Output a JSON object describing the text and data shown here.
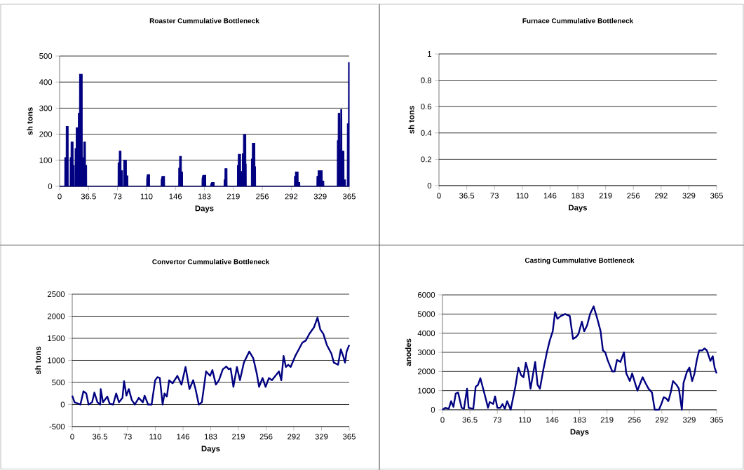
{
  "chart_data": [
    {
      "type": "area",
      "title": "Roaster Cummulative Bottleneck",
      "xlabel": "Days",
      "ylabel": "sh tons",
      "color": "#000080",
      "grid": "y",
      "xlim": [
        0,
        365
      ],
      "xticks": [
        0,
        36.5,
        73,
        {
          "value": 109.5,
          "label": "110"
        },
        146,
        {
          "value": 182.5,
          "label": "183"
        },
        219,
        {
          "value": 255.5,
          "label": "256"
        },
        292,
        {
          "value": 328.5,
          "label": "329"
        },
        365
      ],
      "ylim": [
        0,
        500
      ],
      "yticks": [
        0,
        100,
        200,
        300,
        400,
        500
      ],
      "x": [
        0,
        6.4,
        6.5,
        8.2,
        8.3,
        10.8,
        10.9,
        13.2,
        13.3,
        14.3,
        14.4,
        17,
        17.1,
        18.2,
        18.3,
        19.4,
        19.5,
        20.8,
        20.9,
        23.5,
        23.6,
        25,
        25.1,
        28.5,
        28.6,
        30.3,
        30.4,
        32.6,
        32.7,
        34.1,
        34.2,
        73.6,
        73.7,
        75.1,
        75.2,
        77.4,
        77.5,
        79.3,
        79.4,
        80.7,
        80.8,
        84.2,
        84.3,
        86,
        86.1,
        109.6,
        109.7,
        110.5,
        113.4,
        113.5,
        127.9,
        128,
        129,
        132.3,
        132.4,
        150,
        150.1,
        151.1,
        151.2,
        153.5,
        153.6,
        155,
        155.1,
        179.4,
        179.5,
        180.5,
        184.2,
        184.3,
        190.3,
        190.4,
        191.5,
        194.8,
        194.9,
        207.2,
        207.3,
        208.3,
        208.4,
        211,
        211.1,
        224,
        224.1,
        225.1,
        225.2,
        228.1,
        228.2,
        229.3,
        229.4,
        230.2,
        230.3,
        231.6,
        231.7,
        234.7,
        234.8,
        235.2,
        235.3,
        241.6,
        241.7,
        242.8,
        242.9,
        246.1,
        246.2,
        247,
        247.1,
        295.9,
        296,
        297.1,
        297.2,
        300.6,
        300.7,
        302.7,
        302.8,
        324.2,
        324.3,
        325.7,
        325.8,
        331,
        331.1,
        333,
        333.1,
        349.9,
        350,
        351,
        351.1,
        353.1,
        353.2,
        354.2,
        354.3,
        355.7,
        355.8,
        358.4,
        358.5,
        360.3,
        360.4,
        362.5,
        362.6,
        364,
        364.1,
        365
      ],
      "values": [
        0,
        0,
        110,
        110,
        230,
        230,
        0,
        0,
        110,
        110,
        170,
        170,
        80,
        80,
        0,
        0,
        145,
        145,
        225,
        225,
        280,
        280,
        430,
        430,
        110,
        110,
        170,
        170,
        80,
        80,
        0,
        0,
        90,
        90,
        135,
        135,
        60,
        60,
        0,
        0,
        100,
        100,
        40,
        40,
        0,
        0,
        30,
        45,
        45,
        0,
        0,
        25,
        38,
        38,
        0,
        0,
        70,
        70,
        115,
        115,
        55,
        55,
        0,
        0,
        30,
        42,
        42,
        0,
        0,
        8,
        15,
        15,
        0,
        0,
        25,
        25,
        68,
        68,
        0,
        0,
        80,
        80,
        123,
        123,
        57,
        57,
        0,
        0,
        125,
        125,
        198,
        198,
        85,
        85,
        0,
        0,
        105,
        105,
        165,
        165,
        75,
        75,
        0,
        0,
        38,
        38,
        55,
        55,
        15,
        15,
        0,
        0,
        38,
        38,
        60,
        60,
        20,
        20,
        0,
        0,
        175,
        175,
        280,
        280,
        140,
        140,
        295,
        295,
        135,
        135,
        25,
        25,
        0,
        0,
        240,
        240,
        475,
        475
      ]
    },
    {
      "type": "line",
      "title": "Furnace Cummulative Bottleneck",
      "xlabel": "Days",
      "ylabel": "sh tons",
      "color": "#000080",
      "grid": "y",
      "xlim": [
        0,
        365
      ],
      "xticks": [
        0,
        36.5,
        73,
        {
          "value": 109.5,
          "label": "110"
        },
        146,
        {
          "value": 182.5,
          "label": "183"
        },
        219,
        {
          "value": 255.5,
          "label": "256"
        },
        292,
        {
          "value": 328.5,
          "label": "329"
        },
        365
      ],
      "ylim": [
        0,
        1
      ],
      "yticks": [
        0,
        0.2,
        0.4,
        0.6,
        0.8,
        1
      ]
    },
    {
      "type": "line",
      "title": "Convertor Cummulative Bottleneck",
      "xlabel": "Days",
      "ylabel": "sh tons",
      "color": "#000080",
      "grid": "y",
      "xlim": [
        0,
        365
      ],
      "xticks": [
        0,
        36.5,
        73,
        {
          "value": 109.5,
          "label": "110"
        },
        146,
        {
          "value": 182.5,
          "label": "183"
        },
        219,
        {
          "value": 255.5,
          "label": "256"
        },
        292,
        {
          "value": 328.5,
          "label": "329"
        },
        365
      ],
      "ylim": [
        -500,
        2500
      ],
      "yticks": [
        -500,
        0,
        500,
        1000,
        1500,
        2000,
        2500
      ],
      "x": [
        0,
        3.1,
        10.8,
        14.8,
        18.5,
        21.5,
        26.2,
        29.2,
        33.2,
        36.9,
        37.5,
        40.6,
        46.2,
        49.2,
        53.9,
        57.9,
        61.6,
        66.2,
        68.3,
        71.4,
        74.5,
        78.5,
        82.5,
        87.7,
        93.0,
        95.4,
        100.0,
        104.6,
        109.3,
        112.3,
        115.4,
        119.1,
        121.6,
        124.7,
        127.7,
        132.3,
        138.5,
        144.0,
        149.3,
        154.5,
        159.4,
        162.5,
        166.8,
        170.8,
        176.4,
        181.6,
        184.7,
        189.3,
        193.3,
        198.5,
        203.1,
        206.2,
        208.7,
        212.4,
        217.0,
        221.0,
        226.2,
        233.3,
        238.5,
        243.2,
        246.2,
        250.8,
        254.8,
        259.2,
        263.2,
        267.8,
        272.4,
        275.5,
        278.5,
        281.6,
        284.7,
        287.8,
        293.9,
        298.6,
        303.2,
        307.8,
        312.4,
        318.6,
        323.2,
        326.9,
        330.9,
        335.5,
        341.6,
        344.7,
        350.3,
        353.9,
        357.0,
        359.5,
        361.6,
        365
      ],
      "values": [
        200,
        50,
        0,
        300,
        250,
        0,
        50,
        270,
        50,
        0,
        350,
        50,
        180,
        20,
        0,
        250,
        50,
        150,
        530,
        200,
        350,
        100,
        0,
        150,
        50,
        200,
        0,
        0,
        550,
        620,
        600,
        0,
        250,
        180,
        550,
        480,
        650,
        450,
        850,
        350,
        550,
        350,
        0,
        50,
        750,
        650,
        780,
        450,
        550,
        800,
        860,
        800,
        820,
        400,
        850,
        550,
        950,
        1200,
        1050,
        700,
        400,
        600,
        400,
        600,
        550,
        650,
        750,
        550,
        1100,
        850,
        900,
        850,
        1100,
        1250,
        1400,
        1450,
        1600,
        1750,
        1970,
        1700,
        1600,
        1350,
        1150,
        950,
        900,
        1250,
        1100,
        950,
        1200,
        1350
      ]
    },
    {
      "type": "line",
      "title": "Casting Cummulative Bottleneck",
      "xlabel": "Days",
      "ylabel": "anodes",
      "color": "#000080",
      "grid": "y",
      "xlim": [
        0,
        365
      ],
      "xticks": [
        0,
        36.5,
        73,
        {
          "value": 109.5,
          "label": "110"
        },
        146,
        {
          "value": 182.5,
          "label": "183"
        },
        219,
        {
          "value": 255.5,
          "label": "256"
        },
        292,
        {
          "value": 328.5,
          "label": "329"
        },
        365
      ],
      "ylim": [
        0,
        6000
      ],
      "yticks": [
        0,
        1000,
        2000,
        3000,
        4000,
        5000,
        6000
      ],
      "x": [
        0,
        3.7,
        8.4,
        11.5,
        14.6,
        17.7,
        20.8,
        25.5,
        28.6,
        32.7,
        34.8,
        41.0,
        44.2,
        47.3,
        50.4,
        53.5,
        58.1,
        60.6,
        62.8,
        67.5,
        70.0,
        73.1,
        76.8,
        79.9,
        83.0,
        86.1,
        90.8,
        93.9,
        97.0,
        101.1,
        104.8,
        107.9,
        111.0,
        114.1,
        117.2,
        120.3,
        123.4,
        126.6,
        129.7,
        134.3,
        139.0,
        142.7,
        146.8,
        149.9,
        153.0,
        157.6,
        163.2,
        169.5,
        173.8,
        177.9,
        181.0,
        185.6,
        188.7,
        192.5,
        196.5,
        201.2,
        205.8,
        210.5,
        213.6,
        216.7,
        219.8,
        222.9,
        226.1,
        229.2,
        232.3,
        236.9,
        241.6,
        244.7,
        249.4,
        252.5,
        257.1,
        259.6,
        263.4,
        266.5,
        270.2,
        274.3,
        278.9,
        282.6,
        288.2,
        291.4,
        294.5,
        297.6,
        300.7,
        303.8,
        306.9,
        311.6,
        314.7,
        318.7,
        320.9,
        325.6,
        328.7,
        332.4,
        335.5,
        338.6,
        341.7,
        345.8,
        348.9,
        352.0,
        356.7,
        359.8,
        362.3,
        365
      ],
      "values": [
        0,
        100,
        50,
        450,
        150,
        850,
        900,
        100,
        50,
        1100,
        100,
        50,
        1200,
        1300,
        1650,
        1200,
        500,
        100,
        400,
        300,
        700,
        100,
        100,
        300,
        50,
        450,
        0,
        600,
        1200,
        2200,
        1800,
        1700,
        2450,
        2000,
        1100,
        1800,
        2500,
        1300,
        1100,
        2100,
        3000,
        3600,
        4100,
        5100,
        4750,
        4900,
        5000,
        4900,
        3700,
        3800,
        3950,
        4600,
        4100,
        4400,
        5000,
        5400,
        4800,
        4100,
        3100,
        3000,
        2600,
        2300,
        2000,
        2000,
        2600,
        2500,
        3000,
        1900,
        1500,
        1900,
        1300,
        1000,
        1400,
        1700,
        1400,
        1100,
        900,
        0,
        0,
        300,
        650,
        600,
        450,
        900,
        1500,
        1300,
        1100,
        0,
        1400,
        2000,
        2200,
        1500,
        1900,
        2600,
        3100,
        3100,
        3200,
        3100,
        2550,
        2800,
        2200,
        1900
      ]
    }
  ]
}
